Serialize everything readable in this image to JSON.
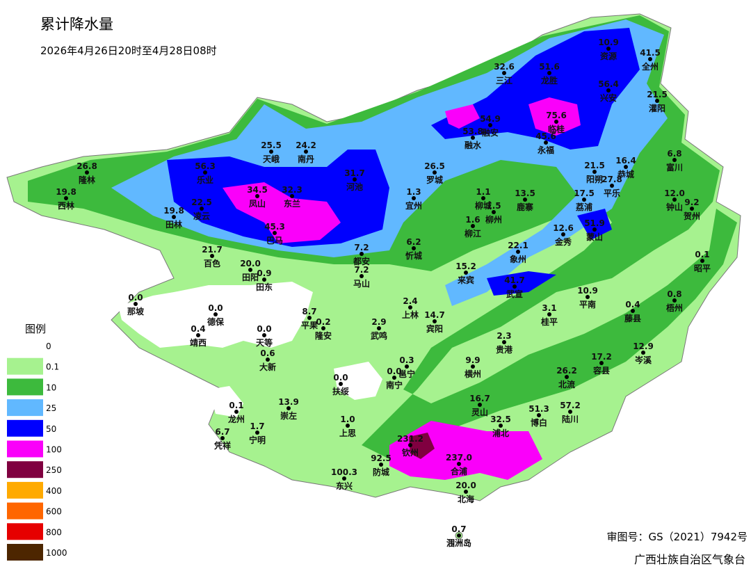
{
  "header": {
    "title": "累计降水量",
    "subtitle": "2026年4月26日20时至4月28日08时"
  },
  "legend": {
    "title": "图例",
    "levels": [
      {
        "label": "0",
        "color": "#ffffff"
      },
      {
        "label": "0.1",
        "color": "#a6f28f"
      },
      {
        "label": "10",
        "color": "#3dba3d"
      },
      {
        "label": "25",
        "color": "#61b8ff"
      },
      {
        "label": "50",
        "color": "#0000fe"
      },
      {
        "label": "100",
        "color": "#fa00fa"
      },
      {
        "label": "250",
        "color": "#800040"
      },
      {
        "label": "400",
        "color": "#ffaa00"
      },
      {
        "label": "600",
        "color": "#ff6600"
      },
      {
        "label": "800",
        "color": "#e60000"
      },
      {
        "label": "1000",
        "color": "#4d2600"
      }
    ]
  },
  "stations": [
    {
      "name": "资源",
      "value": "10.9"
    },
    {
      "name": "全州",
      "value": "41.5"
    },
    {
      "name": "三江",
      "value": "32.6"
    },
    {
      "name": "龙胜",
      "value": "51.6"
    },
    {
      "name": "兴安",
      "value": "56.4"
    },
    {
      "name": "灌阳",
      "value": "21.5"
    },
    {
      "name": "融安",
      "value": "54.9"
    },
    {
      "name": "融水",
      "value": "53.8"
    },
    {
      "name": "临桂",
      "value": "75.6"
    },
    {
      "name": "永福",
      "value": "45.6"
    },
    {
      "name": "天峨",
      "value": "25.5"
    },
    {
      "name": "南丹",
      "value": "24.2"
    },
    {
      "name": "隆林",
      "value": "26.8"
    },
    {
      "name": "乐业",
      "value": "56.3"
    },
    {
      "name": "河池",
      "value": "31.7"
    },
    {
      "name": "罗城",
      "value": "26.5"
    },
    {
      "name": "西林",
      "value": "19.8"
    },
    {
      "name": "凤山",
      "value": "34.5"
    },
    {
      "name": "东兰",
      "value": "32.3"
    },
    {
      "name": "凌云",
      "value": "22.5"
    },
    {
      "name": "田林",
      "value": "19.8"
    },
    {
      "name": "巴马",
      "value": "45.3"
    },
    {
      "name": "宜州",
      "value": "1.3"
    },
    {
      "name": "柳城",
      "value": "1.1"
    },
    {
      "name": "柳州",
      "value": "1.5"
    },
    {
      "name": "柳江",
      "value": "1.6"
    },
    {
      "name": "鹿寨",
      "value": "13.5"
    },
    {
      "name": "富川",
      "value": "6.8"
    },
    {
      "name": "恭城",
      "value": "16.4"
    },
    {
      "name": "阳朔",
      "value": "21.5"
    },
    {
      "name": "平乐",
      "value": "27.8"
    },
    {
      "name": "荔浦",
      "value": "17.5"
    },
    {
      "name": "钟山",
      "value": "12.0"
    },
    {
      "name": "贺州",
      "value": "9.2"
    },
    {
      "name": "金秀",
      "value": "12.6"
    },
    {
      "name": "蒙山",
      "value": "51.9"
    },
    {
      "name": "百色",
      "value": "21.7"
    },
    {
      "name": "田阳",
      "value": "20.0"
    },
    {
      "name": "田东",
      "value": "0.9"
    },
    {
      "name": "都安",
      "value": "7.2"
    },
    {
      "name": "马山",
      "value": "7.2"
    },
    {
      "name": "忻城",
      "value": "6.2"
    },
    {
      "name": "象州",
      "value": "22.1"
    },
    {
      "name": "来宾",
      "value": "15.2"
    },
    {
      "name": "武宣",
      "value": "41.7"
    },
    {
      "name": "平南",
      "value": "10.9"
    },
    {
      "name": "昭平",
      "value": "0.1"
    },
    {
      "name": "藤县",
      "value": "0.4"
    },
    {
      "name": "梧州",
      "value": "0.8"
    },
    {
      "name": "那坡",
      "value": "0.0"
    },
    {
      "name": "德保",
      "value": "0.0"
    },
    {
      "name": "靖西",
      "value": "0.4"
    },
    {
      "name": "天等",
      "value": "0.0"
    },
    {
      "name": "大新",
      "value": "0.6"
    },
    {
      "name": "平果",
      "value": "8.7"
    },
    {
      "name": "隆安",
      "value": "0.2"
    },
    {
      "name": "武鸣",
      "value": "2.9"
    },
    {
      "name": "上林",
      "value": "2.4"
    },
    {
      "name": "宾阳",
      "value": "14.7"
    },
    {
      "name": "桂平",
      "value": "3.1"
    },
    {
      "name": "贵港",
      "value": "2.3"
    },
    {
      "name": "岑溪",
      "value": "12.9"
    },
    {
      "name": "横州",
      "value": "9.9"
    },
    {
      "name": "容县",
      "value": "17.2"
    },
    {
      "name": "北流",
      "value": "26.2"
    },
    {
      "name": "邕宁",
      "value": "0.3"
    },
    {
      "name": "南宁",
      "value": "0.0"
    },
    {
      "name": "扶绥",
      "value": "0.0"
    },
    {
      "name": "龙州",
      "value": "0.1"
    },
    {
      "name": "崇左",
      "value": "13.9"
    },
    {
      "name": "凭祥",
      "value": "6.7"
    },
    {
      "name": "宁明",
      "value": "1.7"
    },
    {
      "name": "上思",
      "value": "1.0"
    },
    {
      "name": "灵山",
      "value": "16.7"
    },
    {
      "name": "浦北",
      "value": "32.5"
    },
    {
      "name": "博白",
      "value": "51.3"
    },
    {
      "name": "陆川",
      "value": "57.2"
    },
    {
      "name": "钦州",
      "value": "231.2"
    },
    {
      "name": "合浦",
      "value": "237.0"
    },
    {
      "name": "防城",
      "value": "92.5"
    },
    {
      "name": "东兴",
      "value": "100.3"
    },
    {
      "name": "北海",
      "value": "20.0"
    },
    {
      "name": "涠洲岛",
      "value": "0.7"
    }
  ],
  "footer": {
    "approval": "审图号：GS（2021）7942号",
    "issuer": "广西壮族自治区气象台"
  }
}
